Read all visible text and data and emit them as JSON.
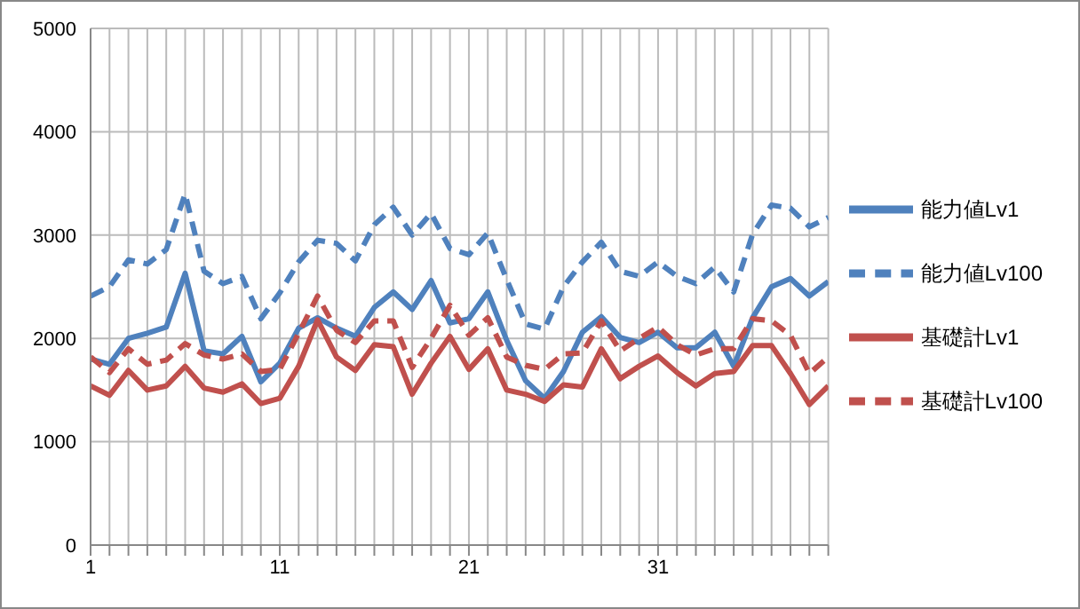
{
  "chart_data": {
    "type": "line",
    "categories": [
      "1",
      null,
      null,
      null,
      null,
      null,
      null,
      null,
      null,
      null,
      "11",
      null,
      null,
      null,
      null,
      null,
      null,
      null,
      null,
      null,
      "21",
      null,
      null,
      null,
      null,
      null,
      null,
      null,
      null,
      null,
      "31",
      null,
      null,
      null,
      null,
      null,
      null,
      null,
      null,
      null
    ],
    "series": [
      {
        "name": "能力値Lv1",
        "color": "#4f81bd",
        "line_style": "solid",
        "values": [
          1800,
          1750,
          2000,
          2050,
          2110,
          2630,
          1880,
          1850,
          2020,
          1580,
          1760,
          2100,
          2200,
          2100,
          2020,
          2300,
          2450,
          2280,
          2560,
          2150,
          2190,
          2450,
          1980,
          1590,
          1420,
          1680,
          2060,
          2210,
          2010,
          1960,
          2060,
          1910,
          1910,
          2060,
          1730,
          2200,
          2500,
          2580,
          2410,
          2550
        ]
      },
      {
        "name": "能力値Lv100",
        "color": "#4f81bd",
        "line_style": "dashed",
        "values": [
          2410,
          2500,
          2760,
          2720,
          2860,
          3400,
          2650,
          2530,
          2600,
          2190,
          2440,
          2740,
          2950,
          2920,
          2750,
          3100,
          3270,
          3000,
          3210,
          2870,
          2810,
          3020,
          2570,
          2140,
          2090,
          2500,
          2740,
          2930,
          2650,
          2600,
          2740,
          2600,
          2530,
          2690,
          2450,
          3010,
          3290,
          3260,
          3080,
          3170
        ]
      },
      {
        "name": "基礎計Lv1",
        "color": "#c0504d",
        "line_style": "solid",
        "values": [
          1540,
          1450,
          1690,
          1500,
          1540,
          1730,
          1520,
          1480,
          1560,
          1370,
          1420,
          1730,
          2180,
          1820,
          1690,
          1940,
          1920,
          1460,
          1760,
          2020,
          1700,
          1900,
          1500,
          1460,
          1390,
          1550,
          1530,
          1900,
          1610,
          1730,
          1830,
          1670,
          1540,
          1660,
          1680,
          1930,
          1930,
          1660,
          1360,
          1540
        ]
      },
      {
        "name": "基礎計Lv100",
        "color": "#c0504d",
        "line_style": "dashed",
        "values": [
          1820,
          1670,
          1900,
          1750,
          1790,
          1950,
          1840,
          1800,
          1850,
          1680,
          1700,
          2050,
          2410,
          2080,
          1960,
          2170,
          2170,
          1720,
          2000,
          2320,
          2030,
          2200,
          1820,
          1740,
          1700,
          1850,
          1860,
          2170,
          1880,
          2000,
          2110,
          1940,
          1840,
          1900,
          1900,
          2190,
          2170,
          2030,
          1660,
          1820
        ]
      }
    ],
    "ylim": [
      0,
      5000
    ],
    "yticks": [
      0,
      1000,
      2000,
      3000,
      4000,
      5000
    ],
    "grid": true,
    "legend": "right",
    "marker": "none"
  }
}
